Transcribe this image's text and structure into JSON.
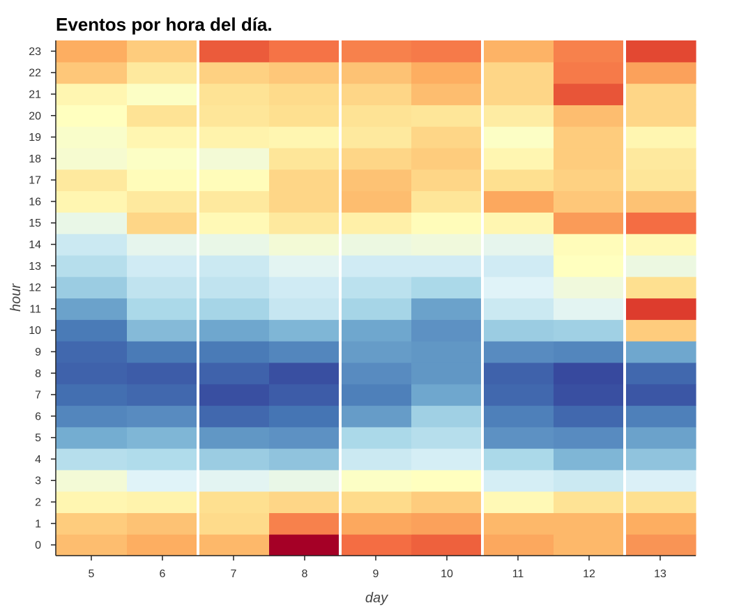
{
  "chart_data": {
    "type": "heatmap",
    "title": "Eventos por hora del día.",
    "xlabel": "day",
    "ylabel": "hour",
    "x_categories": [
      "5",
      "6",
      "7",
      "8",
      "9",
      "10",
      "11",
      "12",
      "13"
    ],
    "y_categories": [
      "0",
      "1",
      "2",
      "3",
      "4",
      "5",
      "6",
      "7",
      "8",
      "9",
      "10",
      "11",
      "12",
      "13",
      "14",
      "15",
      "16",
      "17",
      "18",
      "19",
      "20",
      "21",
      "22",
      "23"
    ],
    "color_scale": "RdYlBu_r",
    "value_range": [
      0,
      100
    ],
    "separators_after_x": [
      "6",
      "8",
      "10",
      "12"
    ],
    "values": [
      [
        67,
        70,
        68,
        100,
        80,
        82,
        71,
        68,
        74
      ],
      [
        64,
        66,
        61,
        77,
        71,
        72,
        68,
        68,
        70
      ],
      [
        53,
        54,
        60,
        62,
        61,
        64,
        52,
        59,
        60
      ],
      [
        46,
        40,
        41,
        43,
        49,
        50,
        38,
        36,
        39
      ],
      [
        32,
        31,
        27,
        25,
        36,
        38,
        30,
        22,
        25
      ],
      [
        20,
        22,
        16,
        15,
        30,
        32,
        15,
        14,
        18
      ],
      [
        13,
        14,
        8,
        10,
        17,
        28,
        12,
        8,
        12
      ],
      [
        9,
        8,
        4,
        6,
        12,
        19,
        8,
        4,
        5
      ],
      [
        7,
        6,
        7,
        4,
        14,
        16,
        7,
        3,
        8
      ],
      [
        8,
        11,
        11,
        13,
        17,
        16,
        14,
        13,
        19
      ],
      [
        11,
        23,
        19,
        22,
        19,
        15,
        27,
        28,
        64
      ],
      [
        18,
        30,
        29,
        35,
        29,
        18,
        36,
        41,
        88
      ],
      [
        27,
        34,
        34,
        37,
        33,
        30,
        40,
        45,
        60
      ],
      [
        32,
        37,
        36,
        41,
        37,
        37,
        37,
        50,
        44
      ],
      [
        36,
        42,
        43,
        46,
        44,
        45,
        42,
        51,
        52
      ],
      [
        43,
        62,
        52,
        57,
        55,
        51,
        53,
        73,
        80
      ],
      [
        53,
        57,
        57,
        62,
        67,
        58,
        71,
        65,
        66
      ],
      [
        57,
        51,
        51,
        62,
        66,
        62,
        60,
        63,
        58
      ],
      [
        47,
        49,
        46,
        58,
        62,
        64,
        53,
        64,
        57
      ],
      [
        48,
        53,
        54,
        53,
        57,
        62,
        49,
        64,
        53
      ],
      [
        50,
        59,
        58,
        60,
        59,
        58,
        56,
        67,
        62
      ],
      [
        53,
        49,
        59,
        61,
        62,
        67,
        62,
        84,
        62
      ],
      [
        65,
        57,
        63,
        65,
        66,
        70,
        62,
        78,
        72
      ],
      [
        70,
        64,
        83,
        79,
        77,
        78,
        69,
        77,
        86
      ]
    ]
  }
}
